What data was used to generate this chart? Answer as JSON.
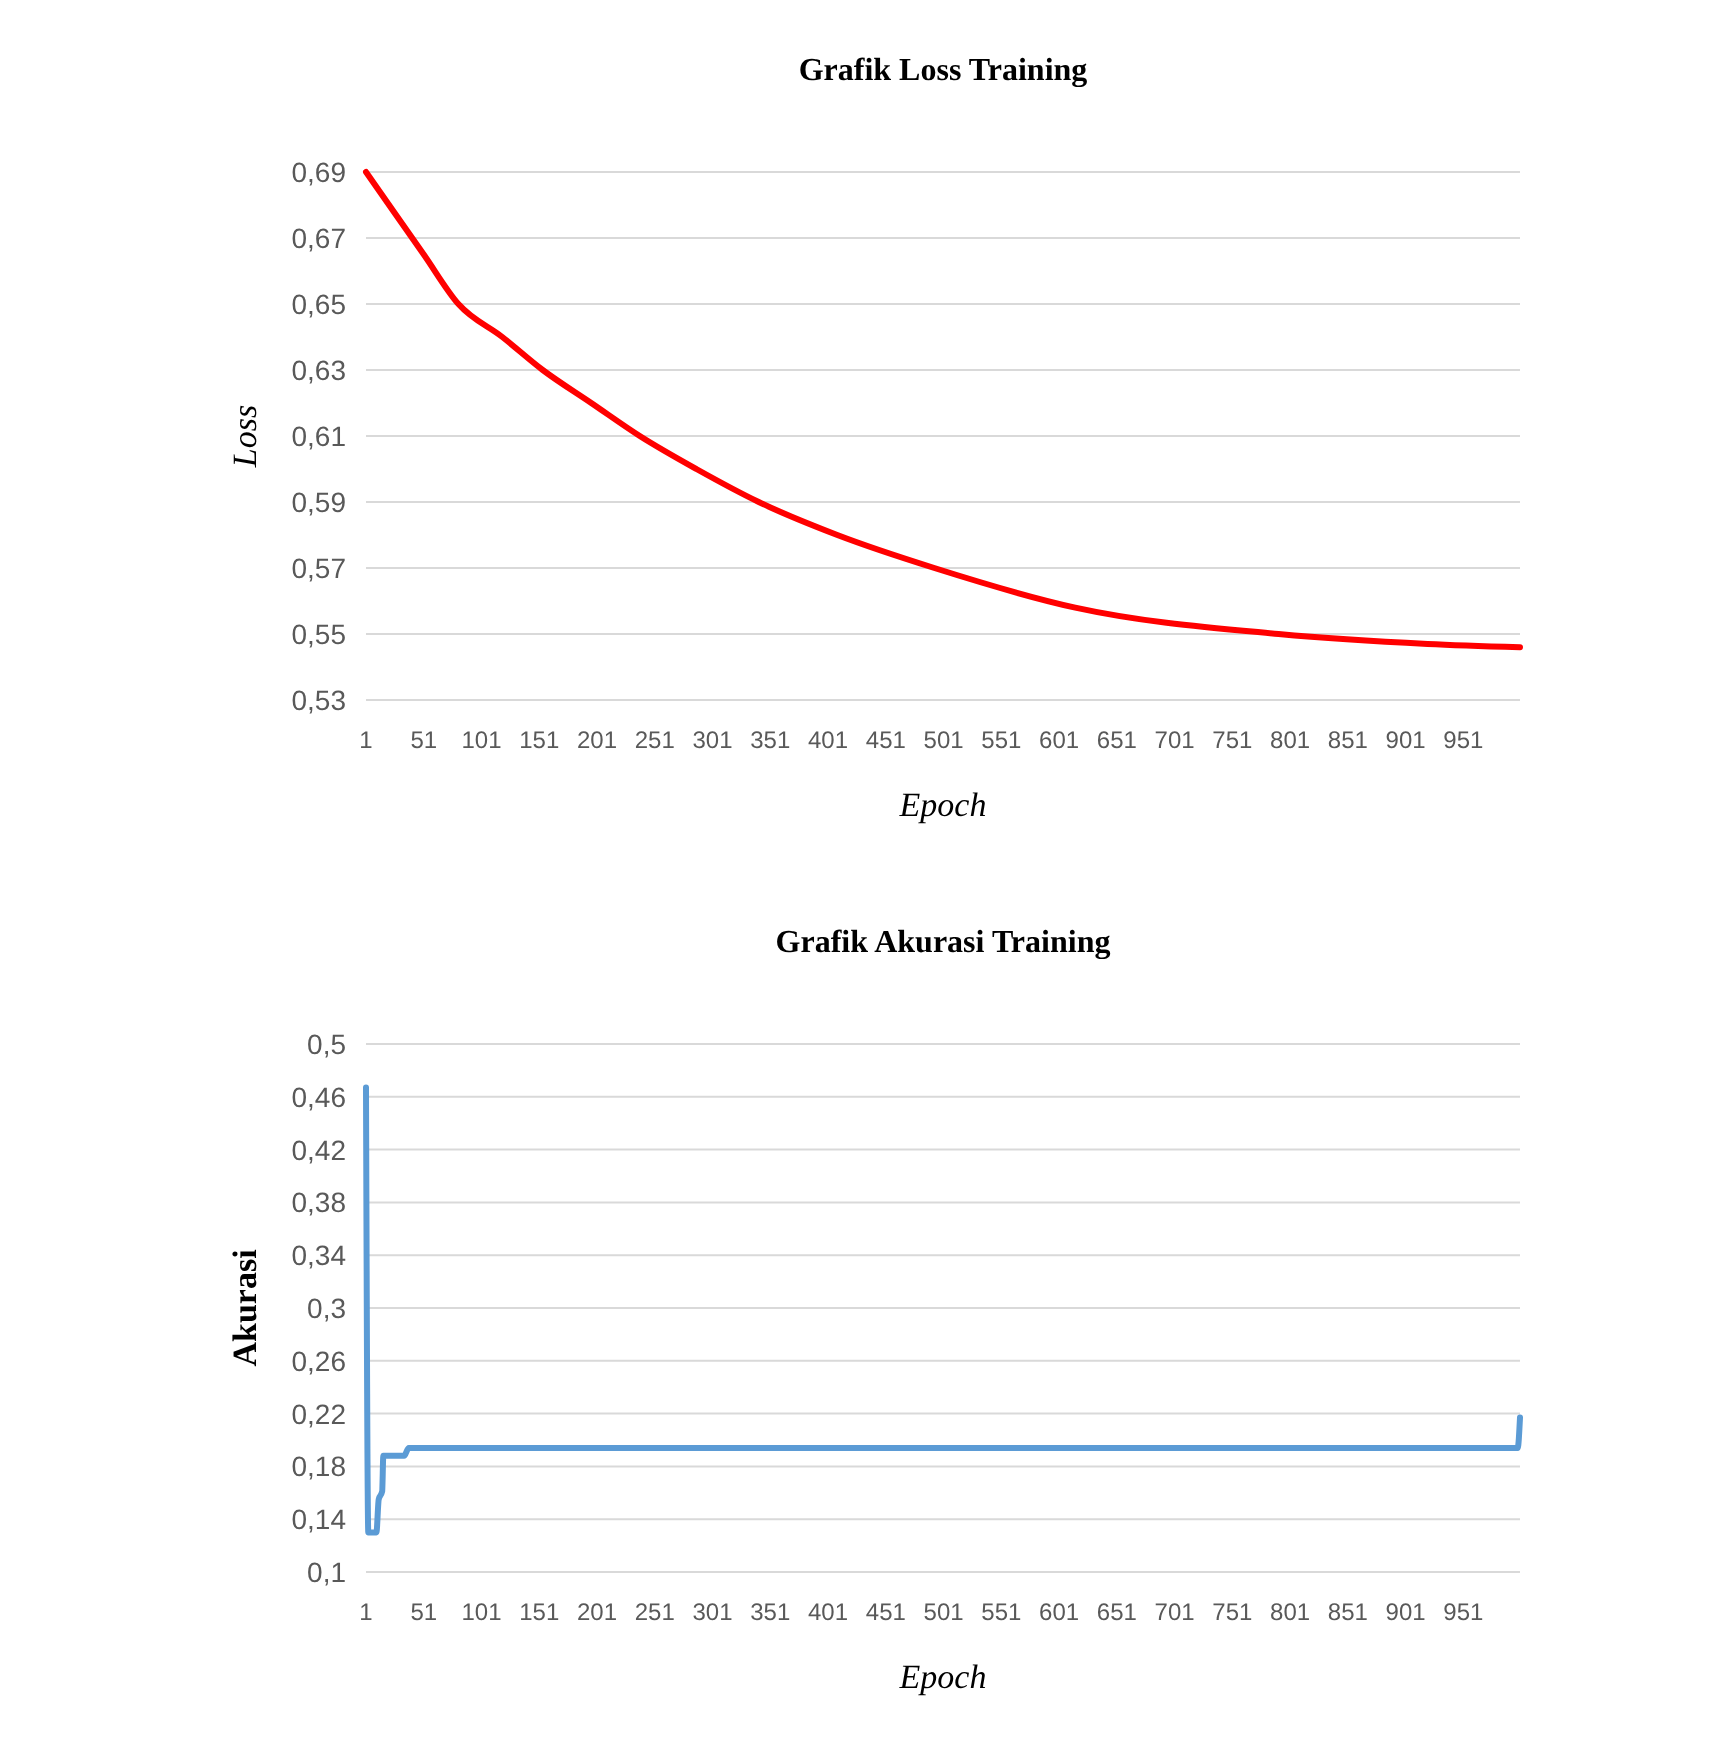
{
  "chart_data": [
    {
      "type": "line",
      "title": "Grafik Loss Training",
      "xlabel": "Epoch",
      "ylabel": "Loss",
      "x": [
        1,
        51,
        81,
        119,
        154,
        196,
        238,
        287,
        341,
        409,
        493,
        615,
        791,
        920,
        1000
      ],
      "series": [
        {
          "color": "#ff0000",
          "values": [
            0.69,
            0.665,
            0.65,
            0.64,
            0.63,
            0.62,
            0.61,
            0.6,
            0.59,
            0.58,
            0.57,
            0.558,
            0.55,
            0.547,
            0.546
          ]
        }
      ],
      "xlim": [
        1,
        1000
      ],
      "xticks": [
        1,
        51,
        101,
        151,
        201,
        251,
        301,
        351,
        401,
        451,
        501,
        551,
        601,
        651,
        701,
        751,
        801,
        851,
        901,
        951
      ],
      "ylim": [
        0.53,
        0.69
      ],
      "yticks": [
        {
          "value": 0.53,
          "label": "0,53"
        },
        {
          "value": 0.55,
          "label": "0,55"
        },
        {
          "value": 0.57,
          "label": "0,57"
        },
        {
          "value": 0.59,
          "label": "0,59"
        },
        {
          "value": 0.61,
          "label": "0,61"
        },
        {
          "value": 0.63,
          "label": "0,63"
        },
        {
          "value": 0.65,
          "label": "0,65"
        },
        {
          "value": 0.67,
          "label": "0,67"
        },
        {
          "value": 0.69,
          "label": "0,69"
        }
      ],
      "grid": "y"
    },
    {
      "type": "line",
      "title": "Grafik Akurasi Training",
      "xlabel": "Epoch",
      "ylabel": "Akurasi",
      "x": [
        1,
        3,
        10,
        12,
        15,
        16,
        34,
        38,
        998,
        1000
      ],
      "series": [
        {
          "color": "#5b9bd5",
          "values": [
            0.467,
            0.13,
            0.13,
            0.155,
            0.161,
            0.188,
            0.188,
            0.194,
            0.194,
            0.217
          ]
        }
      ],
      "xlim": [
        1,
        1000
      ],
      "xticks": [
        1,
        51,
        101,
        151,
        201,
        251,
        301,
        351,
        401,
        451,
        501,
        551,
        601,
        651,
        701,
        751,
        801,
        851,
        901,
        951
      ],
      "ylim": [
        0.1,
        0.5
      ],
      "yticks": [
        {
          "value": 0.1,
          "label": "0,1"
        },
        {
          "value": 0.14,
          "label": "0,14"
        },
        {
          "value": 0.18,
          "label": "0,18"
        },
        {
          "value": 0.22,
          "label": "0,22"
        },
        {
          "value": 0.26,
          "label": "0,26"
        },
        {
          "value": 0.3,
          "label": "0,3"
        },
        {
          "value": 0.34,
          "label": "0,34"
        },
        {
          "value": 0.38,
          "label": "0,38"
        },
        {
          "value": 0.42,
          "label": "0,42"
        },
        {
          "value": 0.46,
          "label": "0,46"
        },
        {
          "value": 0.5,
          "label": "0,5"
        }
      ],
      "grid": "y"
    }
  ]
}
